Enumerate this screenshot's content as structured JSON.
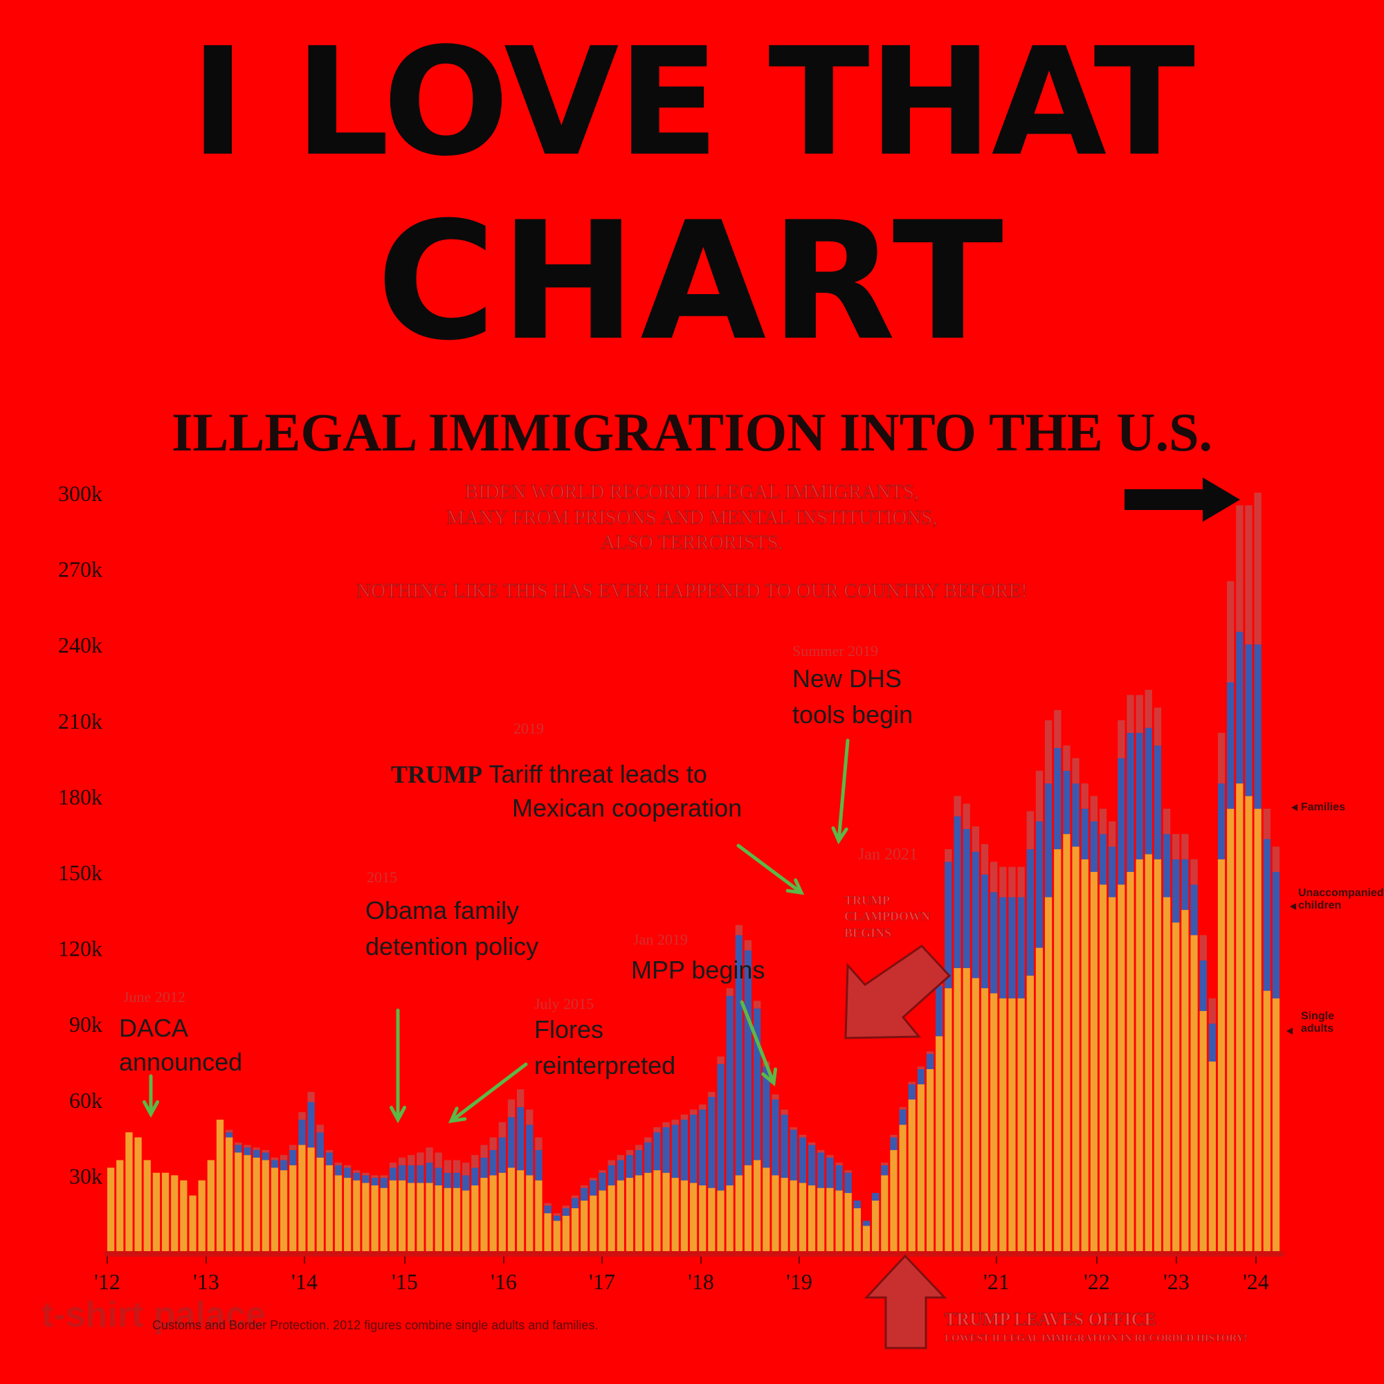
{
  "headline": {
    "line1": "I LOVE THAT",
    "line2": "CHART"
  },
  "subtitle": {
    "line1": "BIDEN WORLD RECORD ILLEGAL IMMIGRANTS,",
    "line2": "MANY FROM PRISONS AND MENTAL INSTITUTIONS,",
    "line3": "ALSO TERRORISTS.",
    "line4": "NOTHING LIKE THIS HAS EVER HAPPENED TO OUR COUNTRY BEFORE!"
  },
  "annotations": {
    "daca": {
      "date": "June 2012",
      "text1": "DACA",
      "text2": "announced"
    },
    "obama": {
      "date": "2015",
      "text1": "Obama family",
      "text2": "detention policy"
    },
    "flores": {
      "date": "July 2015",
      "text1": "Flores",
      "text2": "reinterpreted"
    },
    "trump_tariff": {
      "date": "2019",
      "text1a": "TRUMP",
      "text1b": " Tariff threat leads to",
      "text2": "Mexican cooperation"
    },
    "dhs": {
      "date": "Summer 2019",
      "text1": "New DHS",
      "text2": "tools begin"
    },
    "mpp": {
      "date": "Jan 2019",
      "text1": "MPP begins"
    },
    "crackdown": {
      "date": "Jan 2021",
      "text1": "TRUMP",
      "text2": "CLAMPDOWN",
      "text3": "BEGINS"
    },
    "leaves": {
      "text1": "TRUMP LEAVES OFFICE",
      "text2": "LOWEST ILLEGAL IMMIGRATION IN RECORDED HISTORY!"
    }
  },
  "legend": {
    "families": "Families",
    "children": "Unaccompanied children",
    "adults": "Single adults"
  },
  "source": "Customs and Border Protection. 2012 figures combine single adults and families.",
  "brand": "t-shirt palace",
  "colors": {
    "background": "#ff0000",
    "adults": "#f2a030",
    "children": "#3a5ab0",
    "families": "#d23a3a",
    "arrow_green": "#5cb848"
  },
  "chart_data": {
    "type": "bar",
    "title": "ILLEGAL IMMIGRATION INTO THE U.S.",
    "stacked": true,
    "ylim": [
      0,
      300000
    ],
    "yticks": [
      30000,
      60000,
      90000,
      120000,
      150000,
      180000,
      210000,
      240000,
      270000,
      300000
    ],
    "ytick_labels": [
      "30k",
      "60k",
      "90k",
      "120k",
      "150k",
      "180k",
      "210k",
      "240k",
      "270k",
      "300k"
    ],
    "xtick_labels": [
      "'12",
      "'13",
      "'14",
      "'15",
      "'16",
      "'17",
      "'18",
      "'19",
      "'21",
      "'22",
      "'23",
      "'24"
    ],
    "legend_position": "right",
    "series": [
      {
        "name": "Single adults",
        "values": [
          33000,
          36000,
          47000,
          45000,
          36000,
          31000,
          31000,
          30000,
          28000,
          22000,
          28000,
          36000,
          52000,
          45000,
          39000,
          38000,
          37000,
          36000,
          33000,
          32000,
          34000,
          42000,
          41000,
          37000,
          34000,
          30000,
          29000,
          28000,
          27000,
          26000,
          25000,
          28000,
          28000,
          27000,
          27000,
          27000,
          26000,
          25000,
          25000,
          24000,
          26000,
          29000,
          30000,
          31000,
          33000,
          32000,
          30000,
          28000,
          15000,
          12000,
          14000,
          17000,
          20000,
          22000,
          24000,
          26000,
          28000,
          29000,
          30000,
          31000,
          32000,
          31000,
          29000,
          28000,
          27000,
          26000,
          25000,
          24000,
          26000,
          30000,
          34000,
          36000,
          33000,
          30000,
          29000,
          28000,
          27000,
          26000,
          25000,
          25000,
          24000,
          23000,
          17000,
          10000,
          20000,
          30000,
          40000,
          50000,
          60000,
          66000,
          72000,
          85000,
          104000,
          112000,
          112000,
          108000,
          104000,
          102000,
          100000,
          100000,
          100000,
          109000,
          120000,
          140000,
          159000,
          165000,
          160000,
          155000,
          150000,
          145000,
          140000,
          145000,
          150000,
          155000,
          157000,
          155000,
          140000,
          130000,
          135000,
          125000,
          95000,
          75000,
          155000,
          175000,
          185000,
          180000,
          175000,
          103000,
          100000
        ],
        "color": "#f2a030"
      },
      {
        "name": "Unaccompanied children",
        "values": [
          0,
          0,
          0,
          0,
          0,
          0,
          0,
          0,
          0,
          0,
          0,
          0,
          0,
          2000,
          3000,
          3000,
          3000,
          3000,
          3000,
          4000,
          6000,
          10000,
          18000,
          10000,
          5000,
          4000,
          4000,
          3000,
          3000,
          3000,
          4000,
          5000,
          6000,
          7000,
          7000,
          8000,
          7000,
          6000,
          6000,
          6000,
          7000,
          8000,
          10000,
          14000,
          20000,
          25000,
          20000,
          12000,
          3000,
          2000,
          3000,
          4000,
          5000,
          6000,
          7000,
          8000,
          8000,
          9000,
          10000,
          12000,
          15000,
          18000,
          21000,
          24000,
          27000,
          30000,
          36000,
          50000,
          75000,
          95000,
          85000,
          60000,
          40000,
          30000,
          25000,
          20000,
          18000,
          16000,
          14000,
          12000,
          10000,
          8000,
          3000,
          2000,
          3000,
          4000,
          5000,
          6000,
          6000,
          6000,
          6000,
          20000,
          50000,
          60000,
          55000,
          50000,
          45000,
          40000,
          40000,
          40000,
          40000,
          50000,
          50000,
          45000,
          40000,
          25000,
          25000,
          20000,
          20000,
          20000,
          20000,
          50000,
          55000,
          50000,
          50000,
          45000,
          25000,
          25000,
          20000,
          20000,
          20000,
          15000,
          30000,
          50000,
          60000,
          60000,
          65000,
          60000,
          50000
        ],
        "color": "#3a5ab0"
      },
      {
        "name": "Families",
        "values": [
          0,
          0,
          0,
          0,
          0,
          0,
          0,
          0,
          0,
          0,
          0,
          0,
          0,
          1000,
          1000,
          1000,
          1000,
          1000,
          1000,
          2000,
          2000,
          3000,
          4000,
          3000,
          1000,
          1000,
          1000,
          1000,
          1000,
          1000,
          1000,
          2000,
          3000,
          4000,
          5000,
          6000,
          6000,
          5000,
          5000,
          5000,
          5000,
          5000,
          5000,
          6000,
          7000,
          7000,
          6000,
          5000,
          1000,
          1000,
          1000,
          1000,
          1000,
          1000,
          1000,
          2000,
          2000,
          2000,
          2000,
          2000,
          2000,
          2000,
          2000,
          2000,
          2000,
          2000,
          2000,
          3000,
          3000,
          4000,
          4000,
          3000,
          2000,
          2000,
          2000,
          1000,
          1000,
          1000,
          1000,
          1000,
          1000,
          1000,
          0,
          0,
          0,
          1000,
          1000,
          1000,
          1000,
          1000,
          1000,
          3000,
          5000,
          8000,
          10000,
          10000,
          12000,
          12000,
          12000,
          12000,
          12000,
          15000,
          20000,
          25000,
          15000,
          10000,
          10000,
          10000,
          10000,
          10000,
          10000,
          15000,
          15000,
          15000,
          15000,
          15000,
          10000,
          10000,
          10000,
          10000,
          10000,
          10000,
          20000,
          40000,
          50000,
          55000,
          60000,
          12000,
          10000
        ],
        "color": "#d23a3a"
      }
    ]
  }
}
